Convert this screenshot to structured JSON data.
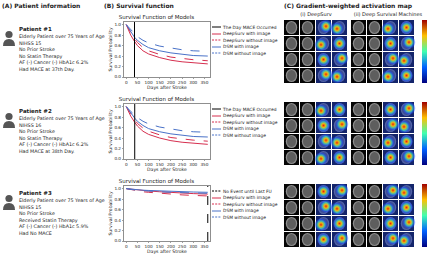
{
  "panels": {
    "a": {
      "title": "(A) Patient information",
      "patients": [
        {
          "name": "Patient #1",
          "lines": [
            "Elderly Patient over 75 Years of Age",
            "NIHSS 15",
            "No Prior Stroke",
            "No Statin Therapy",
            "AF (-) Cancer (-) HbA1c 6.2%",
            "Had MACE at 37th Day."
          ]
        },
        {
          "name": "Patient #2",
          "lines": [
            "Elderly Patient over 75 Years of Age",
            "NIHSS 16",
            "No Prior Stroke",
            "No Statin Therapy",
            "AF (-) Cancer (-) HbA1c 6.2%",
            "Had MACE at 38th Day."
          ]
        },
        {
          "name": "Patient #3",
          "lines": [
            "Elderly Patient over 75 Years of Age",
            "NIHSS 15",
            "No Prior Stroke",
            "Received Statin Therapy",
            "AF (-) Cancer (-) HbA1c 5.9%",
            "Had No MACE"
          ]
        }
      ]
    },
    "b": {
      "title": "(B) Survival function"
    },
    "c": {
      "title": "(C) Gradient-weighted activation map",
      "models": [
        "(i) DeepSurv",
        "(ii) Deep Survival Machines"
      ]
    }
  },
  "chart_data": [
    {
      "type": "line",
      "title": "Survival Function of Models",
      "x_label": "Days after Stroke",
      "y_label": "Survival Probability",
      "x": [
        0,
        10,
        20,
        37,
        50,
        75,
        100,
        150,
        200,
        250,
        300,
        365
      ],
      "series": [
        {
          "name": "DeepSurv with image",
          "color": "#d62f4f",
          "line_style": "solid",
          "values": [
            1,
            0.9,
            0.8,
            0.68,
            0.6,
            0.5,
            0.44,
            0.37,
            0.32,
            0.29,
            0.27,
            0.25
          ]
        },
        {
          "name": "DeepSurv without image",
          "color": "#d62f4f",
          "line_style": "dashed",
          "values": [
            1,
            0.92,
            0.84,
            0.73,
            0.66,
            0.56,
            0.5,
            0.43,
            0.38,
            0.35,
            0.33,
            0.31
          ]
        },
        {
          "name": "DSM with image",
          "color": "#4a72c8",
          "line_style": "solid",
          "values": [
            1,
            0.93,
            0.86,
            0.76,
            0.7,
            0.62,
            0.56,
            0.5,
            0.46,
            0.43,
            0.41,
            0.4
          ]
        },
        {
          "name": "DSM without image",
          "color": "#4a72c8",
          "line_style": "dashed",
          "values": [
            1,
            0.95,
            0.9,
            0.82,
            0.77,
            0.7,
            0.65,
            0.59,
            0.55,
            0.52,
            0.5,
            0.49
          ]
        }
      ],
      "events": [
        {
          "name": "The Day MACE Occurred",
          "x": 37,
          "color": "#000000",
          "line_style": "solid"
        }
      ],
      "xlim": [
        -10,
        375
      ],
      "xticks": [
        0,
        50,
        100,
        150,
        200,
        250,
        300,
        350
      ],
      "ylim": [
        0,
        1.05
      ],
      "yticks": [
        {
          "value": 0,
          "label": "0.0"
        },
        0.2,
        0.4,
        0.6,
        0.8,
        {
          "value": 1,
          "label": "1.0"
        }
      ],
      "grid": false,
      "legend": "right"
    },
    {
      "type": "line",
      "title": "Survival Function of Models",
      "x_label": "Days after Stroke",
      "y_label": "Survival Probability",
      "x": [
        0,
        10,
        20,
        38,
        50,
        75,
        100,
        150,
        200,
        250,
        300,
        365
      ],
      "series": [
        {
          "name": "DeepSurv with image",
          "color": "#d62f4f",
          "line_style": "solid",
          "values": [
            1,
            0.91,
            0.82,
            0.7,
            0.63,
            0.53,
            0.47,
            0.4,
            0.35,
            0.32,
            0.3,
            0.28
          ]
        },
        {
          "name": "DeepSurv without image",
          "color": "#d62f4f",
          "line_style": "dashed",
          "values": [
            1,
            0.93,
            0.86,
            0.75,
            0.68,
            0.59,
            0.53,
            0.46,
            0.41,
            0.38,
            0.36,
            0.34
          ]
        },
        {
          "name": "DSM with image",
          "color": "#4a72c8",
          "line_style": "solid",
          "values": [
            1,
            0.94,
            0.87,
            0.78,
            0.72,
            0.64,
            0.58,
            0.52,
            0.48,
            0.45,
            0.43,
            0.42
          ]
        },
        {
          "name": "DSM without image",
          "color": "#4a72c8",
          "line_style": "dashed",
          "values": [
            1,
            0.95,
            0.91,
            0.84,
            0.79,
            0.72,
            0.67,
            0.61,
            0.57,
            0.54,
            0.52,
            0.51
          ]
        }
      ],
      "events": [
        {
          "name": "The Day MACE Occurred",
          "x": 38,
          "color": "#000000",
          "line_style": "solid"
        }
      ],
      "xlim": [
        -10,
        375
      ],
      "xticks": [
        0,
        50,
        100,
        150,
        200,
        250,
        300,
        350
      ],
      "ylim": [
        0,
        1.05
      ],
      "yticks": [
        {
          "value": 0,
          "label": "0.0"
        },
        0.2,
        0.4,
        0.6,
        0.8,
        {
          "value": 1,
          "label": "1.0"
        }
      ],
      "grid": false,
      "legend": "right"
    },
    {
      "type": "line",
      "title": "Survival Function of Models",
      "x_label": "Days after Stroke",
      "y_label": "Survival Probability",
      "x": [
        0,
        10,
        20,
        37,
        50,
        75,
        100,
        150,
        200,
        250,
        300,
        365
      ],
      "series": [
        {
          "name": "DeepSurv with image",
          "color": "#d62f4f",
          "line_style": "solid",
          "values": [
            1,
            0.995,
            0.99,
            0.98,
            0.975,
            0.965,
            0.955,
            0.94,
            0.925,
            0.915,
            0.905,
            0.895
          ]
        },
        {
          "name": "DeepSurv without image",
          "color": "#d62f4f",
          "line_style": "dashed",
          "values": [
            1,
            0.99,
            0.98,
            0.965,
            0.955,
            0.94,
            0.93,
            0.91,
            0.895,
            0.88,
            0.87,
            0.86
          ]
        },
        {
          "name": "DSM with image",
          "color": "#4a72c8",
          "line_style": "solid",
          "values": [
            1,
            0.995,
            0.99,
            0.985,
            0.98,
            0.97,
            0.965,
            0.955,
            0.945,
            0.94,
            0.935,
            0.93
          ]
        },
        {
          "name": "DSM without image",
          "color": "#4a72c8",
          "line_style": "dashed",
          "values": [
            1,
            0.99,
            0.985,
            0.975,
            0.97,
            0.96,
            0.95,
            0.94,
            0.93,
            0.92,
            0.915,
            0.91
          ]
        }
      ],
      "events": [
        {
          "name": "No Event until Last FU",
          "x": 365,
          "color": "#000000",
          "line_style": "dashed"
        }
      ],
      "xlim": [
        -10,
        375
      ],
      "xticks": [
        0,
        50,
        100,
        150,
        200,
        250,
        300,
        350
      ],
      "ylim": [
        0,
        1.05
      ],
      "yticks": [
        {
          "value": 0,
          "label": "0.0"
        },
        0.2,
        0.4,
        0.6,
        0.8,
        {
          "value": 1,
          "label": "1.0"
        }
      ],
      "grid": false,
      "legend": "right"
    }
  ]
}
